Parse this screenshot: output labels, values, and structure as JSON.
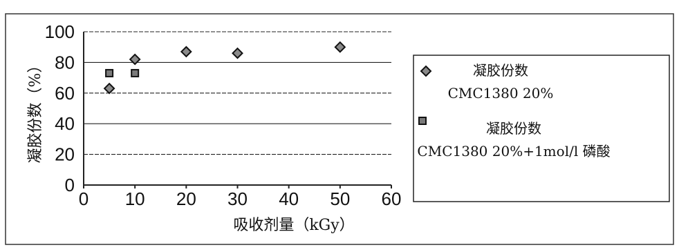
{
  "chart_data": {
    "type": "scatter",
    "xlabel": "吸收剂量（kGy）",
    "ylabel": "凝胶份数（%）",
    "xlim": [
      0,
      60
    ],
    "ylim": [
      0,
      100
    ],
    "x_ticks": [
      "0",
      "10",
      "20",
      "30",
      "40",
      "50",
      "60"
    ],
    "y_ticks": [
      "0",
      "20",
      "40",
      "60",
      "80",
      "100"
    ],
    "grid": true,
    "legend_position": "right",
    "series": [
      {
        "name_lines": [
          "凝胶份数",
          "CMC1380 20%"
        ],
        "marker": "diamond",
        "x": [
          5,
          10,
          20,
          30,
          50
        ],
        "y": [
          63,
          82,
          87,
          86,
          90
        ]
      },
      {
        "name_lines": [
          "凝胶份数",
          "CMC1380 20%+1mol/l 磷酸"
        ],
        "marker": "square",
        "x": [
          5,
          10
        ],
        "y": [
          73,
          73
        ]
      }
    ]
  }
}
